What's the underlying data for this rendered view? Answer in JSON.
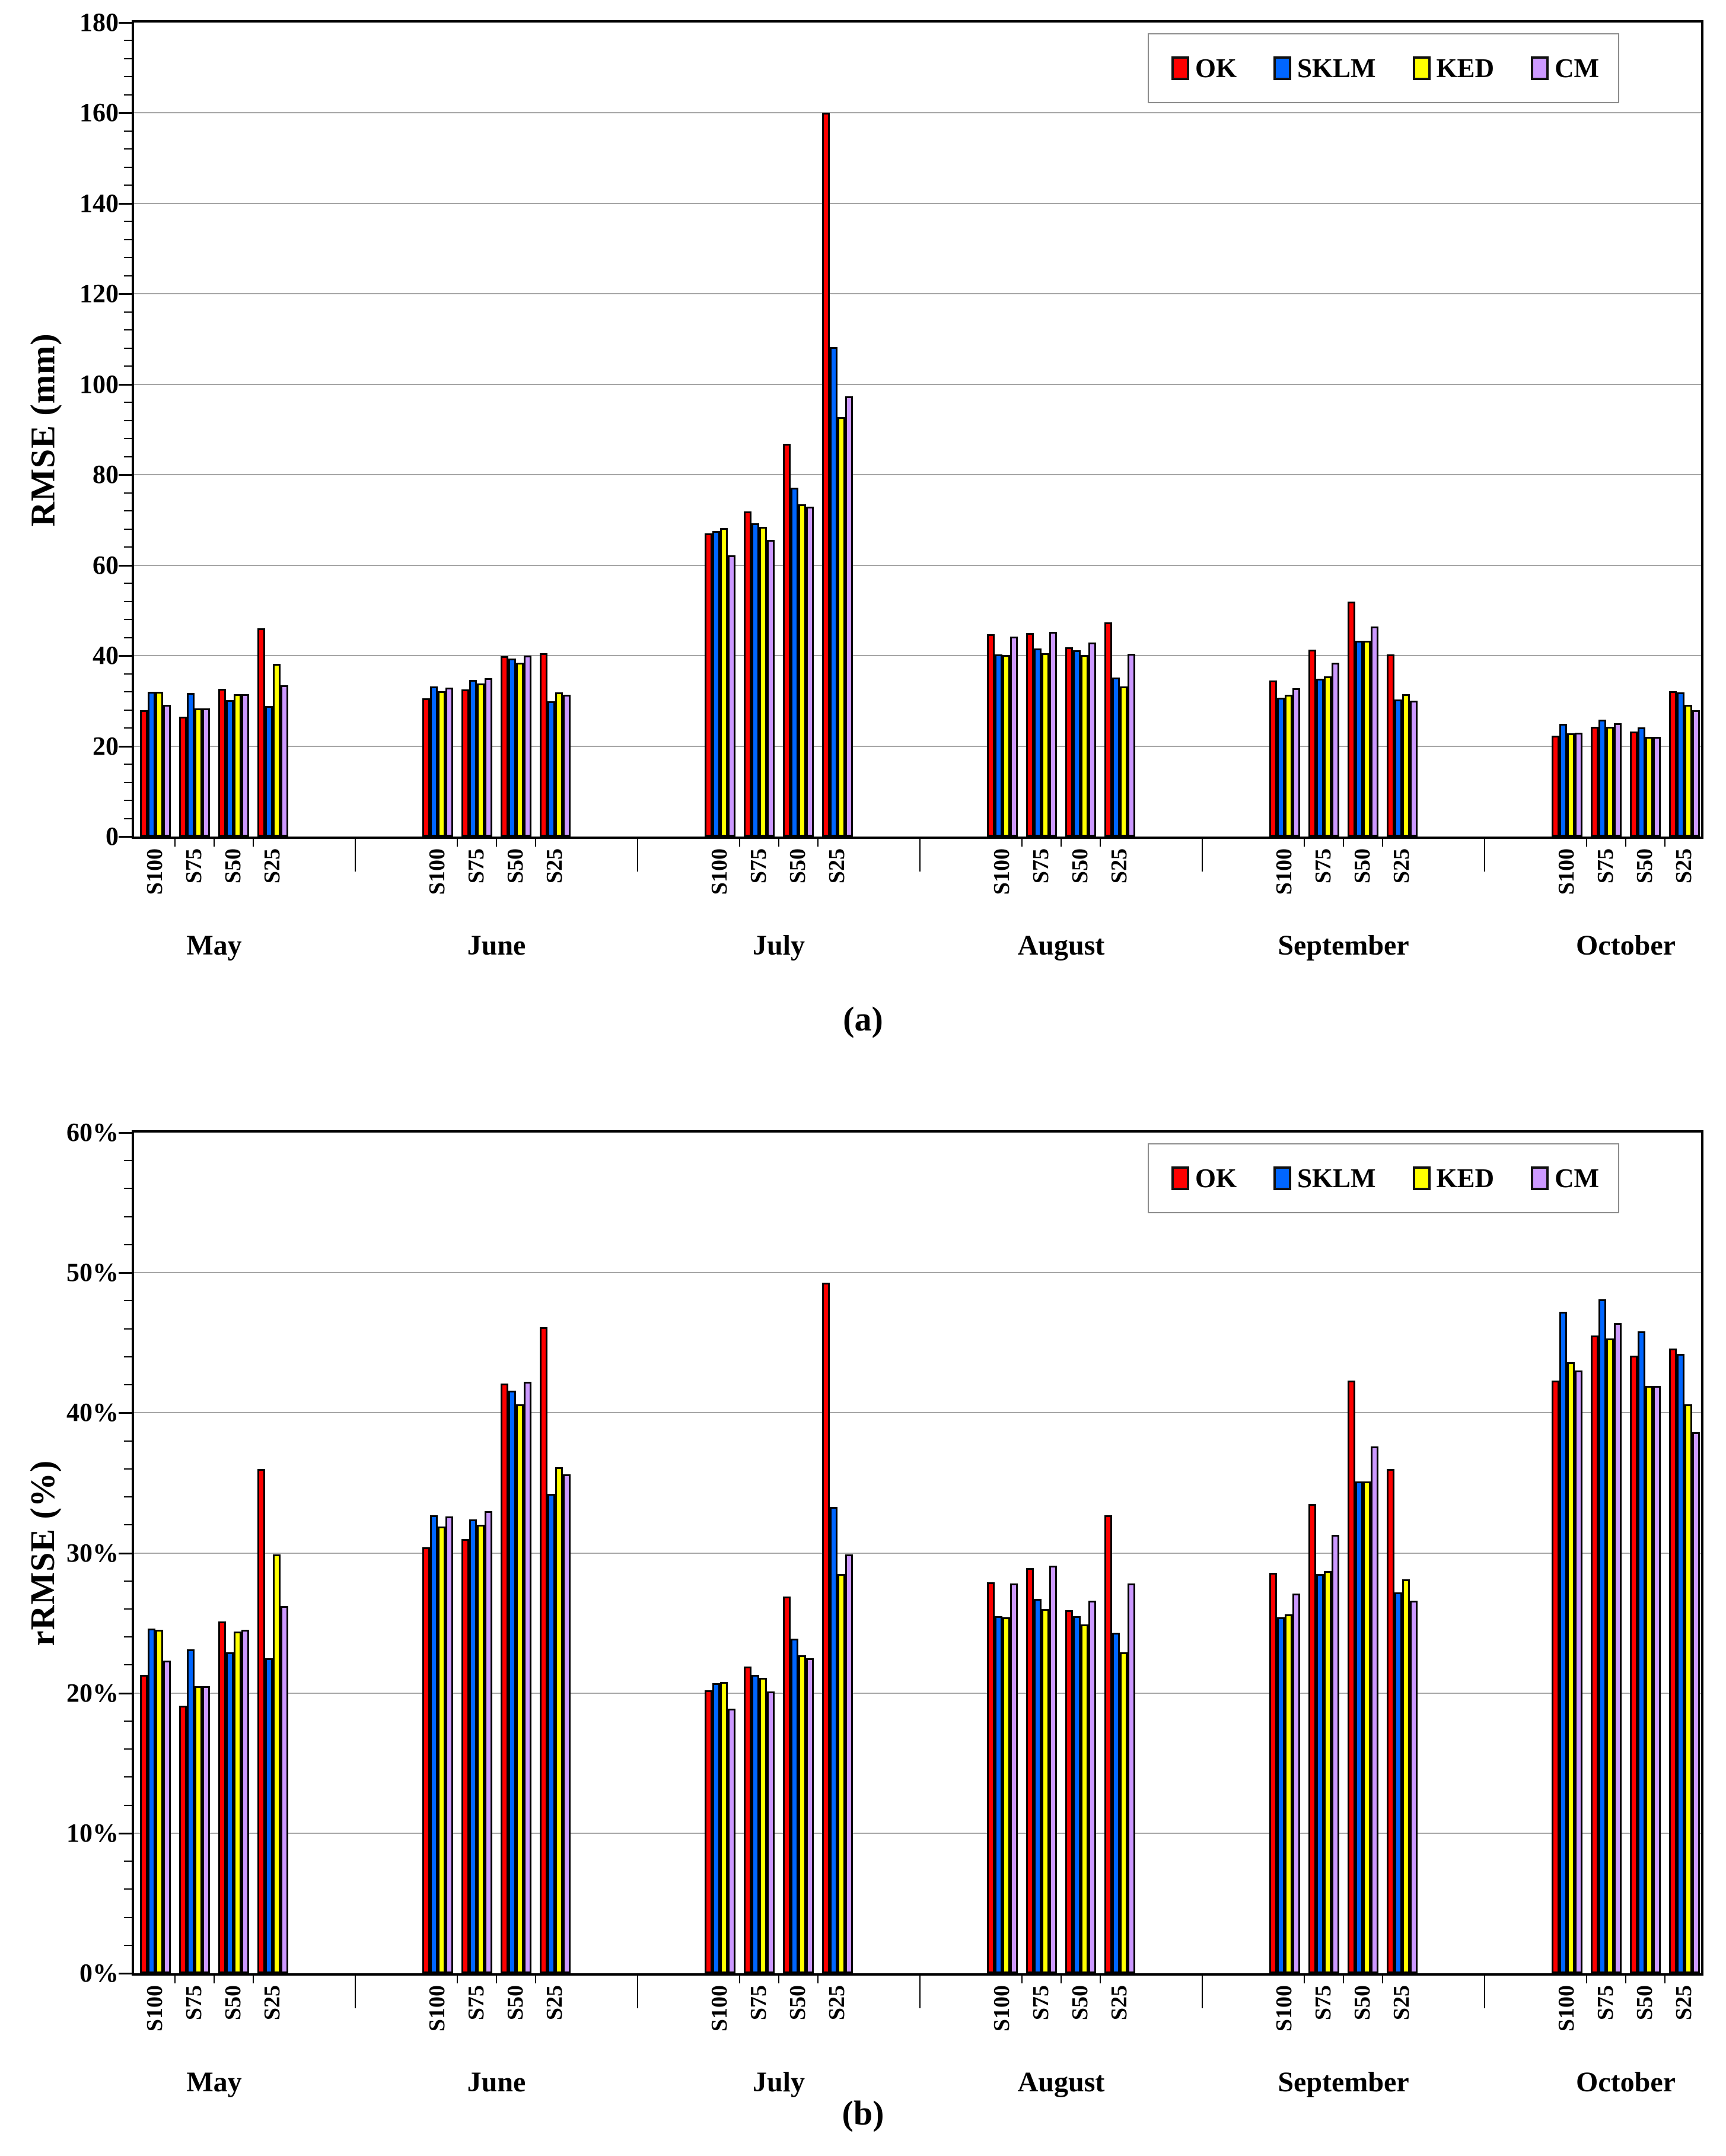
{
  "figure_background": "#FFFFFF",
  "series": [
    {
      "name": "OK",
      "color": "#FE0000"
    },
    {
      "name": "SKLM",
      "color": "#0066FF"
    },
    {
      "name": "KED",
      "color": "#FFFF00"
    },
    {
      "name": "CM",
      "color": "#CC99FF"
    }
  ],
  "colors": {
    "bar_border": "#000000",
    "gridline": "#A6A6A6",
    "axis": "#000000",
    "legend_border": "#8C8C8C",
    "background": "#FFFFFF"
  },
  "legend": {
    "position": "top-right"
  },
  "chart_data": [
    {
      "type": "bar",
      "caption": "(a)",
      "ylabel": "RMSE (mm)",
      "ylim": [
        0,
        180
      ],
      "major_tick": 20,
      "minor_tick": 4,
      "y_tick_labels": [
        "180",
        "160",
        "140",
        "120",
        "100",
        "80",
        "60",
        "40",
        "20",
        "0"
      ],
      "grid": "on",
      "legend_entries": [
        "OK",
        "SKLM",
        "KED",
        "CM"
      ],
      "months": [
        {
          "label": "May",
          "groups": [
            {
              "label": "S100",
              "values": [
                27.9,
                32.0,
                32.0,
                29.1
              ]
            },
            {
              "label": "S75",
              "values": [
                26.5,
                31.7,
                28.3,
                28.3
              ]
            },
            {
              "label": "S50",
              "values": [
                32.7,
                30.2,
                31.5,
                31.5
              ]
            },
            {
              "label": "S25",
              "values": [
                46.0,
                28.9,
                38.2,
                33.5
              ]
            }
          ]
        },
        {
          "label": "June",
          "groups": [
            {
              "label": "S100",
              "values": [
                30.6,
                33.2,
                32.2,
                32.9
              ]
            },
            {
              "label": "S75",
              "values": [
                32.6,
                34.6,
                33.8,
                35.0
              ]
            },
            {
              "label": "S50",
              "values": [
                39.9,
                39.4,
                38.4,
                40.0
              ]
            },
            {
              "label": "S25",
              "values": [
                40.5,
                29.9,
                31.9,
                31.3
              ]
            }
          ]
        },
        {
          "label": "July",
          "groups": [
            {
              "label": "S100",
              "values": [
                67.0,
                67.6,
                68.2,
                62.2
              ]
            },
            {
              "label": "S75",
              "values": [
                71.9,
                69.3,
                68.5,
                65.6
              ]
            },
            {
              "label": "S50",
              "values": [
                86.9,
                77.1,
                73.5,
                73.0
              ]
            },
            {
              "label": "S25",
              "values": [
                160.0,
                108.3,
                92.8,
                97.4
              ]
            }
          ]
        },
        {
          "label": "August",
          "groups": [
            {
              "label": "S100",
              "values": [
                44.7,
                40.3,
                40.2,
                44.2
              ]
            },
            {
              "label": "S75",
              "values": [
                45.0,
                41.6,
                40.5,
                45.2
              ]
            },
            {
              "label": "S50",
              "values": [
                41.8,
                41.2,
                40.1,
                42.9
              ]
            },
            {
              "label": "S25",
              "values": [
                47.3,
                35.2,
                33.2,
                40.4
              ]
            }
          ]
        },
        {
          "label": "September",
          "groups": [
            {
              "label": "S100",
              "values": [
                34.5,
                30.7,
                31.3,
                32.8
              ]
            },
            {
              "label": "S75",
              "values": [
                41.3,
                34.9,
                35.4,
                38.4
              ]
            },
            {
              "label": "S50",
              "values": [
                52.0,
                43.3,
                43.3,
                46.4
              ]
            },
            {
              "label": "S25",
              "values": [
                40.3,
                30.3,
                31.5,
                30.0
              ]
            }
          ]
        },
        {
          "label": "October",
          "groups": [
            {
              "label": "S100",
              "values": [
                22.3,
                24.9,
                22.8,
                22.9
              ]
            },
            {
              "label": "S75",
              "values": [
                24.3,
                25.9,
                24.3,
                25.0
              ]
            },
            {
              "label": "S50",
              "values": [
                23.2,
                24.1,
                22.1,
                22.1
              ]
            },
            {
              "label": "S25",
              "values": [
                32.1,
                31.9,
                29.1,
                27.9
              ]
            }
          ]
        }
      ]
    },
    {
      "type": "bar",
      "caption": "(b)",
      "ylabel": "rRMSE (%)",
      "ylim": [
        0,
        60
      ],
      "major_tick": 10,
      "minor_tick": 2,
      "y_tick_labels": [
        "60%",
        "50%",
        "40%",
        "30%",
        "20%",
        "10%",
        "0%"
      ],
      "grid": "on",
      "legend_entries": [
        "OK",
        "SKLM",
        "KED",
        "CM"
      ],
      "months": [
        {
          "label": "May",
          "groups": [
            {
              "label": "S100",
              "values": [
                21.3,
                24.6,
                24.5,
                22.3
              ]
            },
            {
              "label": "S75",
              "values": [
                19.1,
                23.1,
                20.5,
                20.5
              ]
            },
            {
              "label": "S50",
              "values": [
                25.1,
                22.9,
                24.4,
                24.5
              ]
            },
            {
              "label": "S25",
              "values": [
                36.0,
                22.5,
                29.9,
                26.2
              ]
            }
          ]
        },
        {
          "label": "June",
          "groups": [
            {
              "label": "S100",
              "values": [
                30.4,
                32.7,
                31.9,
                32.6
              ]
            },
            {
              "label": "S75",
              "values": [
                31.0,
                32.4,
                32.0,
                33.0
              ]
            },
            {
              "label": "S50",
              "values": [
                42.1,
                41.6,
                40.6,
                42.2
              ]
            },
            {
              "label": "S25",
              "values": [
                46.1,
                34.2,
                36.1,
                35.6
              ]
            }
          ]
        },
        {
          "label": "July",
          "groups": [
            {
              "label": "S100",
              "values": [
                20.2,
                20.7,
                20.8,
                18.9
              ]
            },
            {
              "label": "S75",
              "values": [
                21.9,
                21.3,
                21.1,
                20.1
              ]
            },
            {
              "label": "S50",
              "values": [
                26.9,
                23.9,
                22.7,
                22.5
              ]
            },
            {
              "label": "S25",
              "values": [
                49.3,
                33.3,
                28.5,
                29.9
              ]
            }
          ]
        },
        {
          "label": "August",
          "groups": [
            {
              "label": "S100",
              "values": [
                27.9,
                25.5,
                25.4,
                27.8
              ]
            },
            {
              "label": "S75",
              "values": [
                28.9,
                26.7,
                26.0,
                29.1
              ]
            },
            {
              "label": "S50",
              "values": [
                25.9,
                25.5,
                24.9,
                26.6
              ]
            },
            {
              "label": "S25",
              "values": [
                32.7,
                24.3,
                22.9,
                27.8
              ]
            }
          ]
        },
        {
          "label": "September",
          "groups": [
            {
              "label": "S100",
              "values": [
                28.6,
                25.4,
                25.6,
                27.1
              ]
            },
            {
              "label": "S75",
              "values": [
                33.5,
                28.5,
                28.7,
                31.3
              ]
            },
            {
              "label": "S50",
              "values": [
                42.3,
                35.1,
                35.1,
                37.6
              ]
            },
            {
              "label": "S25",
              "values": [
                36.0,
                27.2,
                28.1,
                26.6
              ]
            }
          ]
        },
        {
          "label": "October",
          "groups": [
            {
              "label": "S100",
              "values": [
                42.3,
                47.2,
                43.6,
                43.0
              ]
            },
            {
              "label": "S75",
              "values": [
                45.5,
                48.1,
                45.3,
                46.4
              ]
            },
            {
              "label": "S50",
              "values": [
                44.1,
                45.8,
                41.9,
                41.9
              ]
            },
            {
              "label": "S25",
              "values": [
                44.6,
                44.2,
                40.6,
                38.6
              ]
            }
          ]
        }
      ]
    }
  ]
}
